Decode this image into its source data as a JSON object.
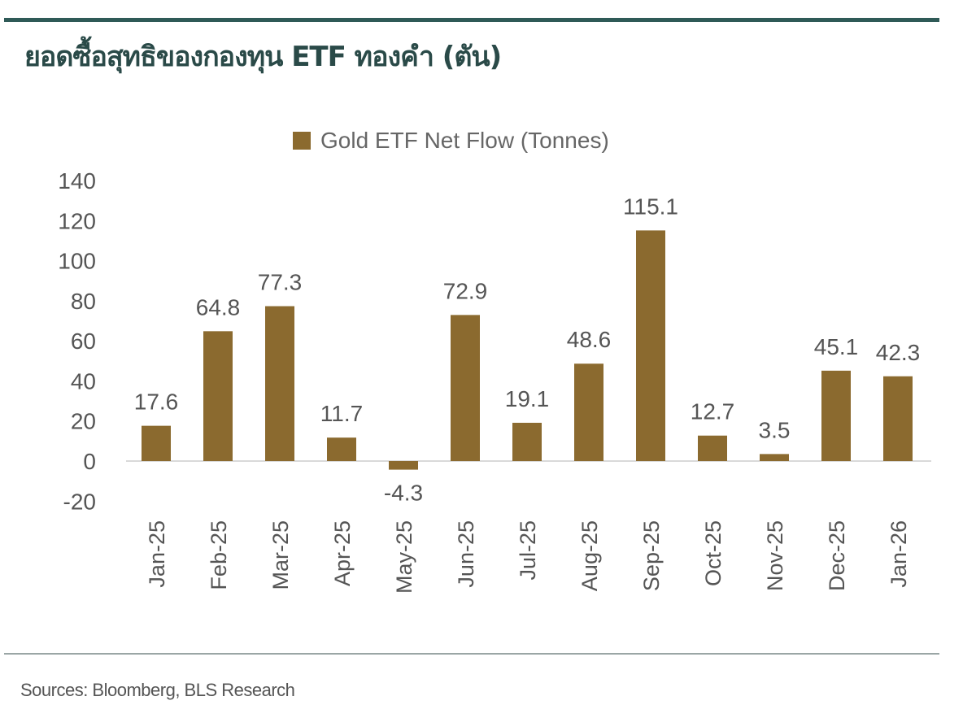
{
  "header": {
    "title": "ยอดซื้อสุทธิของกองทุน ETF ทองคำ (ตัน)"
  },
  "footer": {
    "source": "Sources: Bloomberg, BLS Research"
  },
  "chart_data": {
    "type": "bar",
    "title": "",
    "xlabel": "",
    "ylabel": "",
    "legend": {
      "position": "top",
      "entries": [
        "Gold ETF Net Flow (Tonnes)"
      ]
    },
    "categories": [
      "Jan-25",
      "Feb-25",
      "Mar-25",
      "Apr-25",
      "May-25",
      "Jun-25",
      "Jul-25",
      "Aug-25",
      "Sep-25",
      "Oct-25",
      "Nov-25",
      "Dec-25",
      "Jan-26"
    ],
    "series": [
      {
        "name": "Gold ETF Net Flow (Tonnes)",
        "color": "#8b6a2f",
        "values": [
          17.6,
          64.8,
          77.3,
          11.7,
          -4.3,
          72.9,
          19.1,
          48.6,
          115.1,
          12.7,
          3.5,
          45.1,
          42.3
        ]
      }
    ],
    "data_labels": [
      "17.6",
      "64.8",
      "77.3",
      "11.7",
      "-4.3",
      "72.9",
      "19.1",
      "48.6",
      "115.1",
      "12.7",
      "3.5",
      "45.1",
      "42.3"
    ],
    "ylim": [
      -20,
      140
    ],
    "yticks": [
      "-20",
      "0",
      "20",
      "40",
      "60",
      "80",
      "100",
      "120",
      "140"
    ],
    "grid": false
  }
}
